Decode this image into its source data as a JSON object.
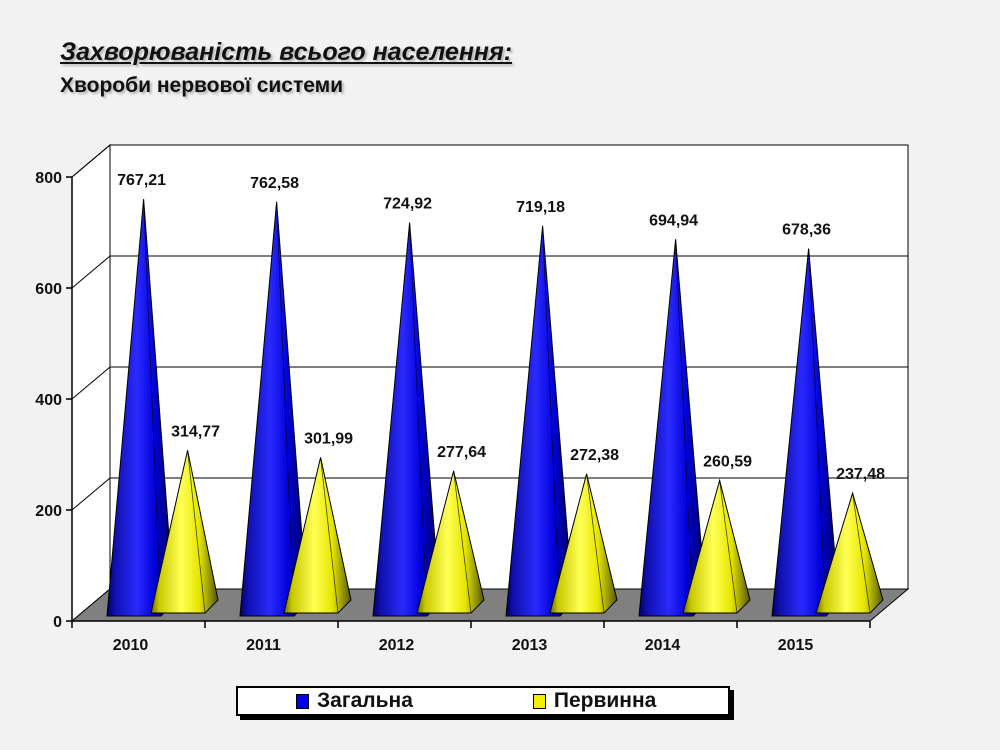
{
  "title": "Захворюваність всього населення:",
  "subtitle": "Хвороби нервової системи",
  "chart_data": {
    "type": "bar",
    "bar_shape": "3d-cone",
    "categories": [
      "2010",
      "2011",
      "2012",
      "2013",
      "2014",
      "2015"
    ],
    "series": [
      {
        "name": "Загальна",
        "color": "#0000ee",
        "values": [
          767.21,
          762.58,
          724.92,
          719.18,
          694.94,
          678.36
        ],
        "labels": [
          "767,21",
          "762,58",
          "724,92",
          "719,18",
          "694,94",
          "678,36"
        ]
      },
      {
        "name": "Первинна",
        "color": "#f0f000",
        "values": [
          314.77,
          301.99,
          277.64,
          272.38,
          260.59,
          237.48
        ],
        "labels": [
          "314,77",
          "301,99",
          "277,64",
          "272,38",
          "260,59",
          "237,48"
        ]
      }
    ],
    "yticks": [
      "0",
      "200",
      "400",
      "600",
      "800"
    ],
    "ylim": [
      0,
      800
    ],
    "grid": true,
    "legend_position": "bottom"
  }
}
